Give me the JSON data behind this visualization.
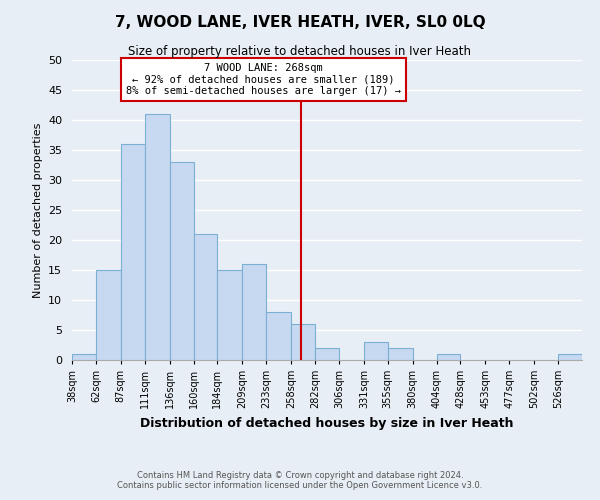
{
  "title": "7, WOOD LANE, IVER HEATH, IVER, SL0 0LQ",
  "subtitle": "Size of property relative to detached houses in Iver Heath",
  "xlabel": "Distribution of detached houses by size in Iver Heath",
  "ylabel": "Number of detached properties",
  "footer_line1": "Contains HM Land Registry data © Crown copyright and database right 2024.",
  "footer_line2": "Contains public sector information licensed under the Open Government Licence v3.0.",
  "bin_labels": [
    "38sqm",
    "62sqm",
    "87sqm",
    "111sqm",
    "136sqm",
    "160sqm",
    "184sqm",
    "209sqm",
    "233sqm",
    "258sqm",
    "282sqm",
    "306sqm",
    "331sqm",
    "355sqm",
    "380sqm",
    "404sqm",
    "428sqm",
    "453sqm",
    "477sqm",
    "502sqm",
    "526sqm"
  ],
  "bar_values": [
    1,
    15,
    36,
    41,
    33,
    21,
    15,
    16,
    8,
    6,
    2,
    0,
    3,
    2,
    0,
    1,
    0,
    0,
    0,
    0,
    1
  ],
  "bar_color": "#c6d9f0",
  "bar_edge_color": "#7bafd4",
  "ylim": [
    0,
    50
  ],
  "yticks": [
    0,
    5,
    10,
    15,
    20,
    25,
    30,
    35,
    40,
    45,
    50
  ],
  "property_line_x": 268,
  "bin_edges": [
    38,
    62,
    87,
    111,
    136,
    160,
    184,
    209,
    233,
    258,
    282,
    306,
    331,
    355,
    380,
    404,
    428,
    453,
    477,
    502,
    526,
    550
  ],
  "annotation_title": "7 WOOD LANE: 268sqm",
  "annotation_line1": "← 92% of detached houses are smaller (189)",
  "annotation_line2": "8% of semi-detached houses are larger (17) →",
  "property_line_color": "#cc0000",
  "annotation_box_edge": "#cc0000",
  "background_color": "#e8eef5"
}
